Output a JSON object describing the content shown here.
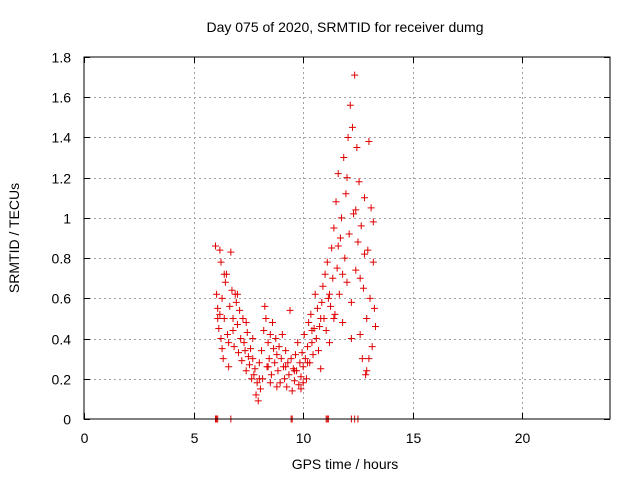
{
  "chart_data": {
    "type": "scatter",
    "title": "Day 075 of 2020, SRMTID for receiver dumg",
    "xlabel": "GPS time / hours",
    "ylabel": "SRMTID / TECUs",
    "xlim": [
      0,
      24
    ],
    "ylim": [
      0,
      1.8
    ],
    "x_ticks": [
      0,
      5,
      10,
      15,
      20
    ],
    "x_tick_labels": [
      "0",
      "5",
      "10",
      "15",
      "20"
    ],
    "y_ticks": [
      0,
      0.2,
      0.4,
      0.6,
      0.8,
      1.0,
      1.2,
      1.4,
      1.6,
      1.8
    ],
    "y_tick_labels": [
      "0",
      "0.2",
      "0.4",
      "0.6",
      "0.8",
      "1",
      "1.2",
      "1.4",
      "1.6",
      "1.8"
    ],
    "grid": true,
    "marker": "+",
    "color": "#e00000",
    "series": [
      {
        "points": [
          [
            6.0,
            0.86
          ],
          [
            6.05,
            0.62
          ],
          [
            6.1,
            0.55
          ],
          [
            6.1,
            0.5
          ],
          [
            6.15,
            0.45
          ],
          [
            6.2,
            0.84
          ],
          [
            6.25,
            0.78
          ],
          [
            6.25,
            0.4
          ],
          [
            6.3,
            0.6
          ],
          [
            6.3,
            0.35
          ],
          [
            6.35,
            0.3
          ],
          [
            6.4,
            0.5
          ],
          [
            6.45,
            0.68
          ],
          [
            6.5,
            0.72
          ],
          [
            6.55,
            0.42
          ],
          [
            6.6,
            0.26
          ],
          [
            6.65,
            0.56
          ],
          [
            6.7,
            0.83
          ],
          [
            6.75,
            0.64
          ],
          [
            6.8,
            0.44
          ],
          [
            6.85,
            0.36
          ],
          [
            6.9,
            0.62
          ],
          [
            6.95,
            0.58
          ],
          [
            7.0,
            0.47
          ],
          [
            7.05,
            0.33
          ],
          [
            7.1,
            0.54
          ],
          [
            7.15,
            0.4
          ],
          [
            7.2,
            0.29
          ],
          [
            7.25,
            0.5
          ],
          [
            7.3,
            0.38
          ],
          [
            7.35,
            0.34
          ],
          [
            7.4,
            0.24
          ],
          [
            7.45,
            0.43
          ],
          [
            7.5,
            0.31
          ],
          [
            7.55,
            0.27
          ],
          [
            7.6,
            0.35
          ],
          [
            7.65,
            0.2
          ],
          [
            7.7,
            0.3
          ],
          [
            7.75,
            0.22
          ],
          [
            7.8,
            0.25
          ],
          [
            7.85,
            0.12
          ],
          [
            7.9,
            0.18
          ],
          [
            7.95,
            0.09
          ],
          [
            8.0,
            0.28
          ],
          [
            8.05,
            0.15
          ],
          [
            8.1,
            0.34
          ],
          [
            8.15,
            0.2
          ],
          [
            8.2,
            0.44
          ],
          [
            8.25,
            0.56
          ],
          [
            8.3,
            0.5
          ],
          [
            8.35,
            0.26
          ],
          [
            8.4,
            0.38
          ],
          [
            8.45,
            0.3
          ],
          [
            8.5,
            0.42
          ],
          [
            8.55,
            0.22
          ],
          [
            8.6,
            0.48
          ],
          [
            8.65,
            0.35
          ],
          [
            8.7,
            0.28
          ],
          [
            8.75,
            0.4
          ],
          [
            8.8,
            0.32
          ],
          [
            8.85,
            0.24
          ],
          [
            8.9,
            0.36
          ],
          [
            8.95,
            0.18
          ],
          [
            9.0,
            0.3
          ],
          [
            9.05,
            0.42
          ],
          [
            9.1,
            0.26
          ],
          [
            9.15,
            0.2
          ],
          [
            9.2,
            0.34
          ],
          [
            9.25,
            0.16
          ],
          [
            9.3,
            0.28
          ],
          [
            9.35,
            0.22
          ],
          [
            9.4,
            0.54
          ],
          [
            9.45,
            0.3
          ],
          [
            9.5,
            0.14
          ],
          [
            9.55,
            0.25
          ],
          [
            9.6,
            0.19
          ],
          [
            9.65,
            0.32
          ],
          [
            9.7,
            0.24
          ],
          [
            9.75,
            0.38
          ],
          [
            9.8,
            0.17
          ],
          [
            9.85,
            0.28
          ],
          [
            9.9,
            0.21
          ],
          [
            9.95,
            0.33
          ],
          [
            10.0,
            0.26
          ],
          [
            10.05,
            0.42
          ],
          [
            10.1,
            0.3
          ],
          [
            10.15,
            0.2
          ],
          [
            10.2,
            0.36
          ],
          [
            10.25,
            0.48
          ],
          [
            10.3,
            0.28
          ],
          [
            10.35,
            0.52
          ],
          [
            10.4,
            0.38
          ],
          [
            10.45,
            0.32
          ],
          [
            10.5,
            0.45
          ],
          [
            10.55,
            0.62
          ],
          [
            10.6,
            0.4
          ],
          [
            10.65,
            0.55
          ],
          [
            10.7,
            0.34
          ],
          [
            10.75,
            0.46
          ],
          [
            10.8,
            0.25
          ],
          [
            10.85,
            0.58
          ],
          [
            10.9,
            0.66
          ],
          [
            10.95,
            0.5
          ],
          [
            11.0,
            0.72
          ],
          [
            11.05,
            0.44
          ],
          [
            11.1,
            0.78
          ],
          [
            11.15,
            0.6
          ],
          [
            11.2,
            0.38
          ],
          [
            11.25,
            0.56
          ],
          [
            11.3,
            0.85
          ],
          [
            11.35,
            0.7
          ],
          [
            11.4,
            0.95
          ],
          [
            11.45,
            0.52
          ],
          [
            11.5,
            1.08
          ],
          [
            11.55,
            0.75
          ],
          [
            11.6,
            1.22
          ],
          [
            11.65,
            0.62
          ],
          [
            11.7,
            0.9
          ],
          [
            11.75,
            1.0
          ],
          [
            11.8,
            0.48
          ],
          [
            11.85,
            1.3
          ],
          [
            11.9,
            0.8
          ],
          [
            11.95,
            1.12
          ],
          [
            12.0,
            0.68
          ],
          [
            12.05,
            1.4
          ],
          [
            12.1,
            0.92
          ],
          [
            12.15,
            1.56
          ],
          [
            12.2,
            0.58
          ],
          [
            12.25,
            1.45
          ],
          [
            12.3,
            1.02
          ],
          [
            12.35,
            1.71
          ],
          [
            12.4,
            0.74
          ],
          [
            12.45,
            1.35
          ],
          [
            12.5,
            0.88
          ],
          [
            12.55,
            1.18
          ],
          [
            12.6,
            0.42
          ],
          [
            12.65,
            0.96
          ],
          [
            12.7,
            0.3
          ],
          [
            12.75,
            0.65
          ],
          [
            12.8,
            1.1
          ],
          [
            12.85,
            0.22
          ],
          [
            12.9,
            0.5
          ],
          [
            12.95,
            0.84
          ],
          [
            13.0,
            1.38
          ],
          [
            13.05,
            0.6
          ],
          [
            13.1,
            1.05
          ],
          [
            13.15,
            0.36
          ],
          [
            13.2,
            0.78
          ],
          [
            13.25,
            0.55
          ],
          [
            13.3,
            0.46
          ],
          [
            6.2,
            0.52
          ],
          [
            6.6,
            0.38
          ],
          [
            7.0,
            0.62
          ],
          [
            7.4,
            0.48
          ],
          [
            8.0,
            0.2
          ],
          [
            8.4,
            0.26
          ],
          [
            8.8,
            0.16
          ],
          [
            9.2,
            0.26
          ],
          [
            9.6,
            0.24
          ],
          [
            10.0,
            0.18
          ],
          [
            10.4,
            0.44
          ],
          [
            10.8,
            0.5
          ],
          [
            11.2,
            0.62
          ],
          [
            11.6,
            0.86
          ],
          [
            12.0,
            1.2
          ],
          [
            12.4,
            1.04
          ],
          [
            12.8,
            0.82
          ],
          [
            13.2,
            0.98
          ],
          [
            12.2,
            0.4
          ],
          [
            11.8,
            0.72
          ],
          [
            11.4,
            0.5
          ],
          [
            12.6,
            0.7
          ],
          [
            13.0,
            0.3
          ],
          [
            12.9,
            0.24
          ],
          [
            7.7,
            0.4
          ],
          [
            8.5,
            0.18
          ],
          [
            9.9,
            0.15
          ],
          [
            10.2,
            0.28
          ],
          [
            6.4,
            0.72
          ],
          [
            6.8,
            0.5
          ],
          [
            6.0,
            0.0
          ],
          [
            6.05,
            0.0
          ],
          [
            6.1,
            0.0
          ],
          [
            6.7,
            0.0
          ],
          [
            9.45,
            0.0
          ],
          [
            9.5,
            0.0
          ],
          [
            11.05,
            0.0
          ],
          [
            11.1,
            0.0
          ],
          [
            11.15,
            0.0
          ],
          [
            12.2,
            0.0
          ],
          [
            12.35,
            0.0
          ],
          [
            12.5,
            0.0
          ]
        ]
      }
    ]
  }
}
